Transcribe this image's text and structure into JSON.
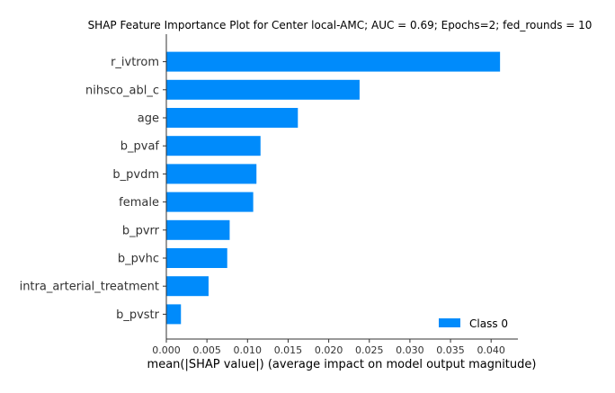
{
  "chart_data": {
    "type": "bar",
    "orientation": "horizontal",
    "title": "SHAP Feature Importance Plot for Center local-AMC; AUC = 0.69; Epochs=2; fed_rounds = 10",
    "xlabel": "mean(|SHAP value|) (average impact on model output magnitude)",
    "ylabel": "",
    "categories": [
      "r_ivtrom",
      "nihsco_abl_c",
      "age",
      "b_pvaf",
      "b_pvdm",
      "female",
      "b_pvrr",
      "b_pvhc",
      "intra_arterial_treatment",
      "b_pvstr"
    ],
    "series": [
      {
        "name": "Class 0",
        "color": "#008bfb",
        "values": [
          0.0411,
          0.0238,
          0.0162,
          0.0116,
          0.0111,
          0.0107,
          0.0078,
          0.0075,
          0.0052,
          0.0018
        ]
      }
    ],
    "xlim": [
      0,
      0.0433
    ],
    "xticks": [
      0.0,
      0.005,
      0.01,
      0.015,
      0.02,
      0.025,
      0.03,
      0.035,
      0.04
    ],
    "xtick_labels": [
      "0.000",
      "0.005",
      "0.010",
      "0.015",
      "0.020",
      "0.025",
      "0.030",
      "0.035",
      "0.040"
    ],
    "legend_position": "bottom-right",
    "grid": false
  }
}
